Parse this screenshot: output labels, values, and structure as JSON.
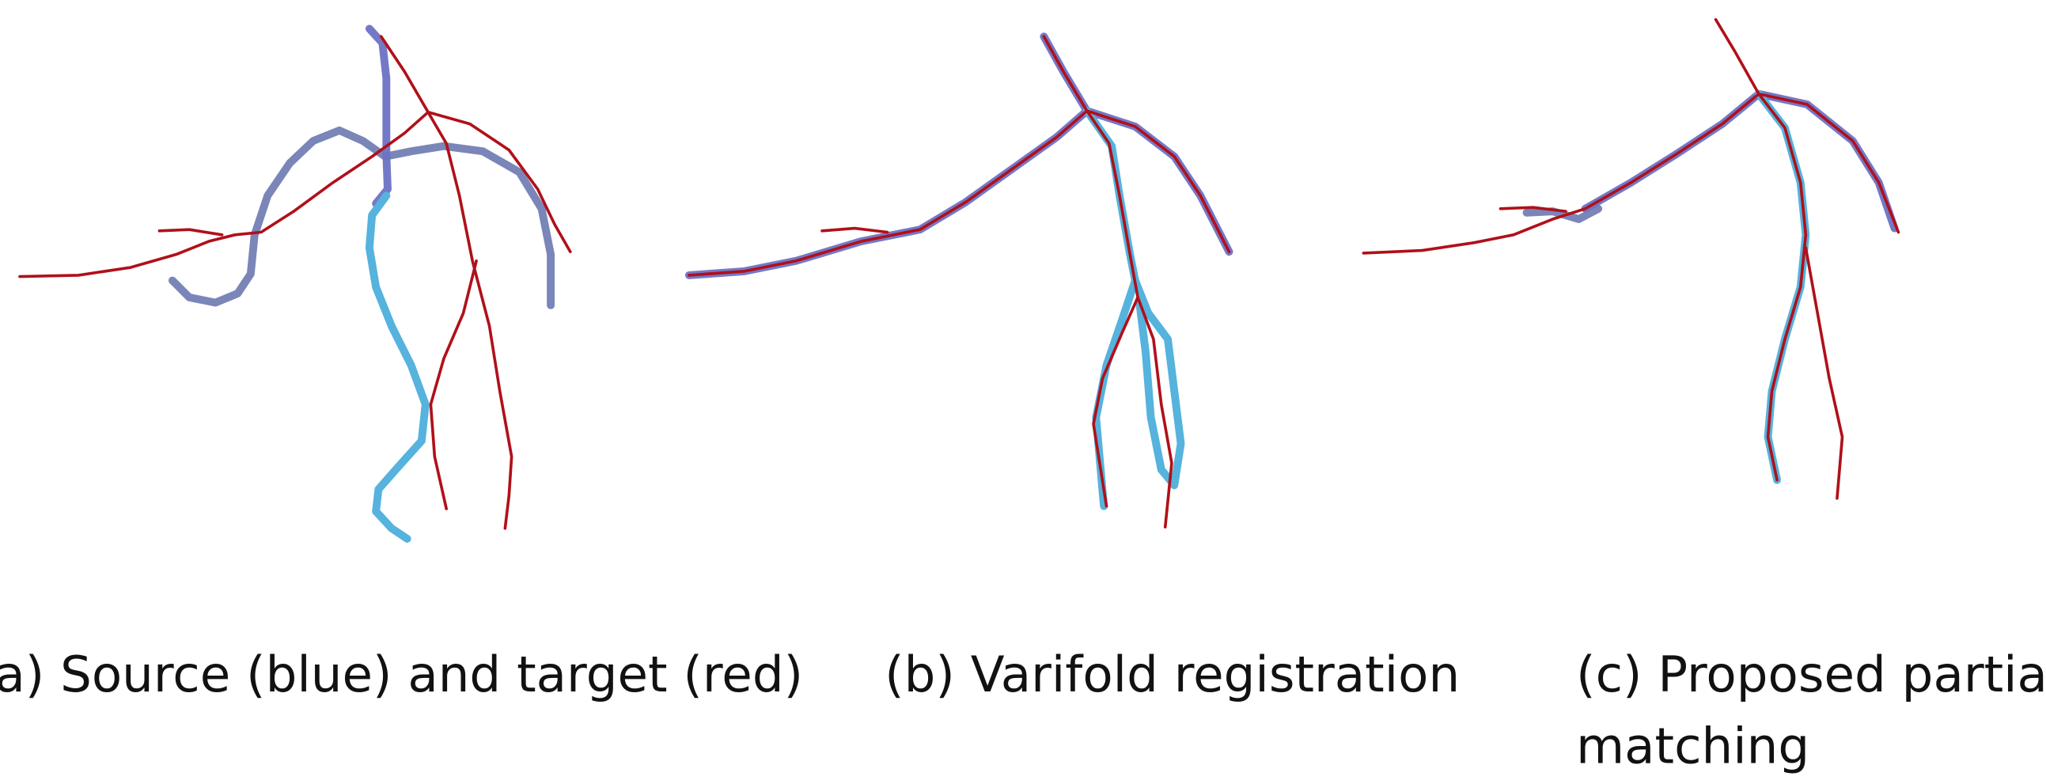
{
  "captions": {
    "a": "(a) Source (blue) and target (red)",
    "b": "(b) Varifold registration",
    "c": [
      "(c) Proposed partial",
      "matching"
    ]
  }
}
